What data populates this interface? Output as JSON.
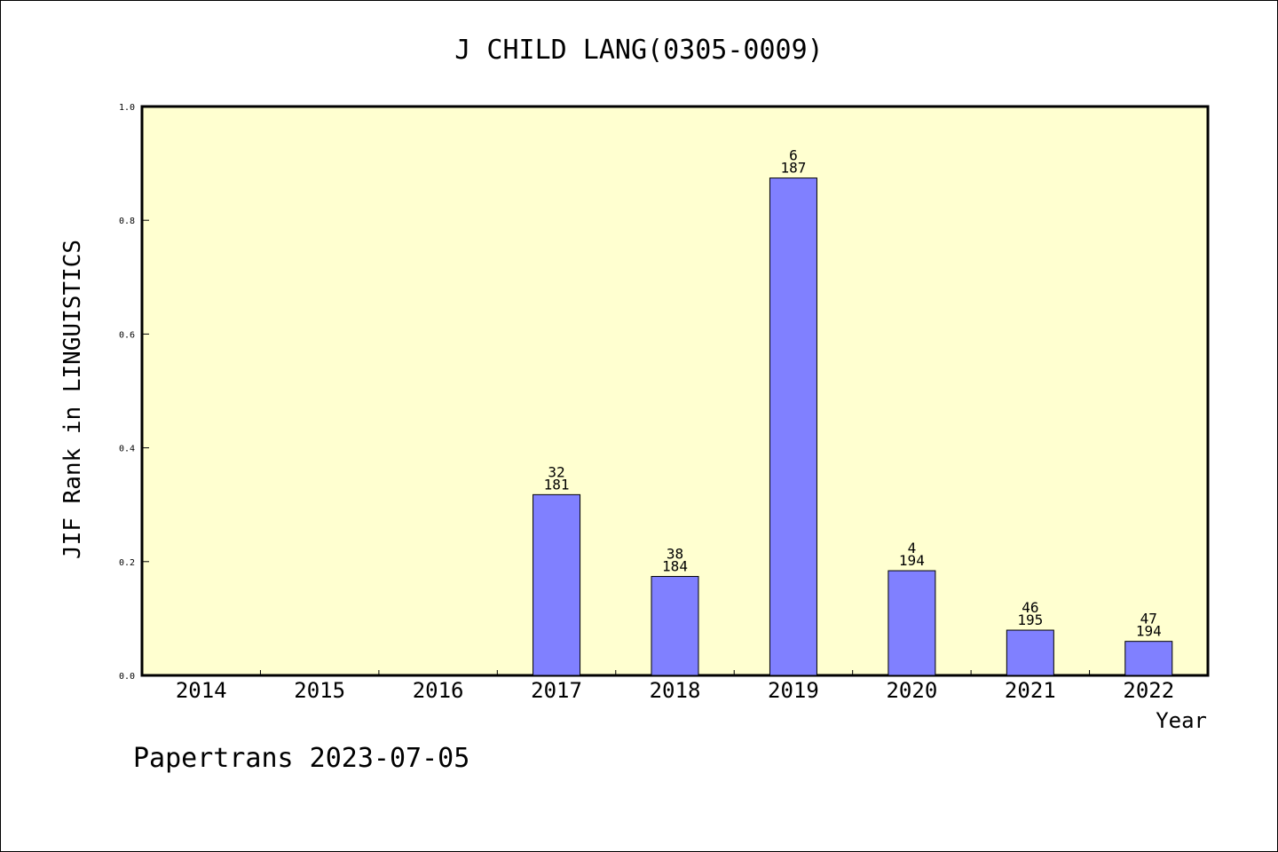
{
  "chart_data": {
    "type": "bar",
    "title": "J CHILD LANG(0305-0009)",
    "xlabel": "Year",
    "ylabel": "JIF Rank in LINGUISTICS",
    "ylim": [
      0,
      1.0
    ],
    "yticks": [
      "0.0",
      "0.2",
      "0.4",
      "0.6",
      "0.8",
      "1.0"
    ],
    "categories": [
      "2014",
      "2015",
      "2016",
      "2017",
      "2018",
      "2019",
      "2020",
      "2021",
      "2022"
    ],
    "values": [
      null,
      null,
      null,
      0.3177,
      0.1739,
      0.8743,
      0.184,
      0.0795,
      0.0598
    ],
    "data_labels": [
      null,
      null,
      null,
      {
        "rank": "32",
        "total": "181"
      },
      {
        "rank": "38",
        "total": "184"
      },
      {
        "rank": "6",
        "total": "187"
      },
      {
        "rank": "4",
        "total": "194"
      },
      {
        "rank": "46",
        "total": "195"
      },
      {
        "rank": "47",
        "total": "194"
      }
    ],
    "grid": false,
    "colors": {
      "plot_background": "#ffffd0",
      "bar_fill": "#8080ff",
      "bar_stroke": "#000000"
    }
  },
  "footer": "Papertrans 2023-07-05"
}
